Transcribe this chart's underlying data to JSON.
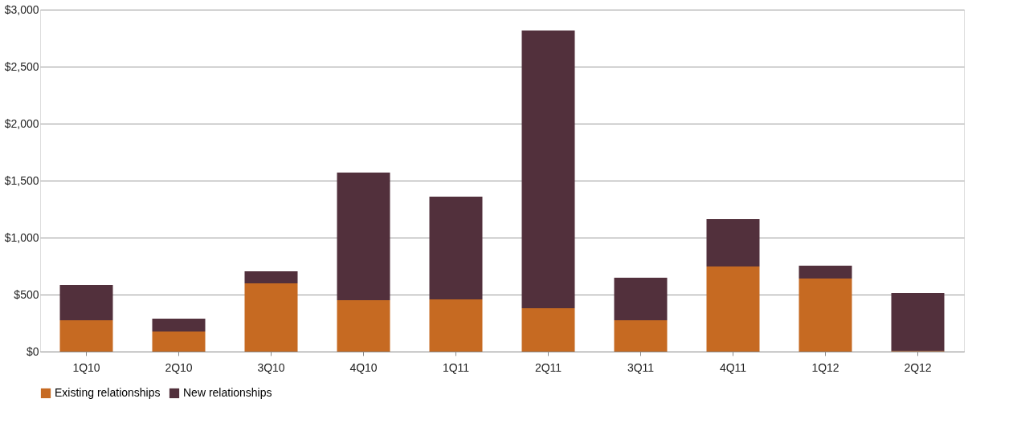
{
  "chart_data": {
    "type": "bar",
    "stacked": true,
    "categories": [
      "1Q10",
      "2Q10",
      "3Q10",
      "4Q10",
      "1Q11",
      "2Q11",
      "3Q11",
      "4Q11",
      "1Q12",
      "2Q12"
    ],
    "series": [
      {
        "name": "Existing relationships",
        "color": "#c66a22",
        "values": [
          275,
          176,
          599,
          451,
          458,
          380,
          275,
          746,
          641,
          5
        ]
      },
      {
        "name": "New relationships",
        "color": "#52303c",
        "values": [
          310,
          113,
          105,
          1119,
          901,
          2437,
          373,
          416,
          113,
          509
        ]
      }
    ],
    "ylim": [
      0,
      3000
    ],
    "yticks": [
      {
        "value": 0,
        "label": "$0"
      },
      {
        "value": 500,
        "label": "$500"
      },
      {
        "value": 1000,
        "label": "$1,000"
      },
      {
        "value": 1500,
        "label": "$1,500"
      },
      {
        "value": 2000,
        "label": "$2,000"
      },
      {
        "value": 2500,
        "label": "$2,500"
      },
      {
        "value": 3000,
        "label": "$3,000"
      }
    ],
    "grid": "y",
    "legend": "bottom"
  }
}
